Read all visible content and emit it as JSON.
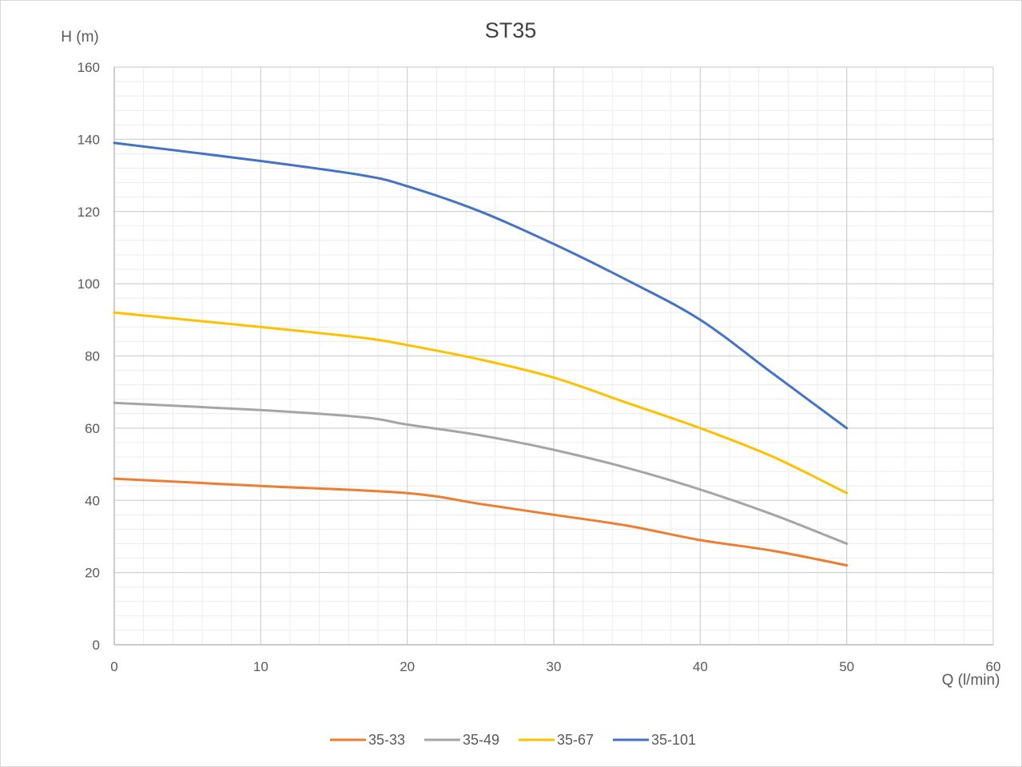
{
  "chart_data": {
    "type": "line",
    "title": "ST35",
    "xlabel": "Q (l/min)",
    "ylabel": "H (m)",
    "xlim": [
      0,
      60
    ],
    "ylim": [
      0,
      160
    ],
    "x_major_step": 10,
    "y_major_step": 20,
    "grid": true,
    "minor_grid": true,
    "legend_position": "bottom",
    "x_ticks": [
      "0",
      "10",
      "20",
      "30",
      "40",
      "50",
      "60"
    ],
    "y_ticks": [
      "0",
      "20",
      "40",
      "60",
      "80",
      "100",
      "120",
      "140",
      "160"
    ],
    "series": [
      {
        "name": "35-33",
        "color": "#ED7D31",
        "points": [
          [
            0,
            46
          ],
          [
            10,
            44
          ],
          [
            20,
            42
          ],
          [
            25,
            39
          ],
          [
            30,
            36
          ],
          [
            35,
            33
          ],
          [
            40,
            29
          ],
          [
            45,
            26
          ],
          [
            50,
            22
          ]
        ]
      },
      {
        "name": "35-49",
        "color": "#A5A5A5",
        "points": [
          [
            0,
            67
          ],
          [
            10,
            65
          ],
          [
            17,
            63
          ],
          [
            20,
            61
          ],
          [
            25,
            58
          ],
          [
            30,
            54
          ],
          [
            35,
            49
          ],
          [
            40,
            43
          ],
          [
            45,
            36
          ],
          [
            50,
            28
          ]
        ]
      },
      {
        "name": "35-67",
        "color": "#FFC000",
        "points": [
          [
            0,
            92
          ],
          [
            10,
            88
          ],
          [
            17,
            85
          ],
          [
            20,
            83
          ],
          [
            25,
            79
          ],
          [
            30,
            74
          ],
          [
            35,
            67
          ],
          [
            40,
            60
          ],
          [
            45,
            52
          ],
          [
            50,
            42
          ]
        ]
      },
      {
        "name": "35-101",
        "color": "#4472C4",
        "points": [
          [
            0,
            139
          ],
          [
            10,
            134
          ],
          [
            17,
            130
          ],
          [
            20,
            127
          ],
          [
            25,
            120
          ],
          [
            30,
            111
          ],
          [
            35,
            101
          ],
          [
            40,
            90
          ],
          [
            45,
            75
          ],
          [
            50,
            60
          ]
        ]
      }
    ]
  }
}
